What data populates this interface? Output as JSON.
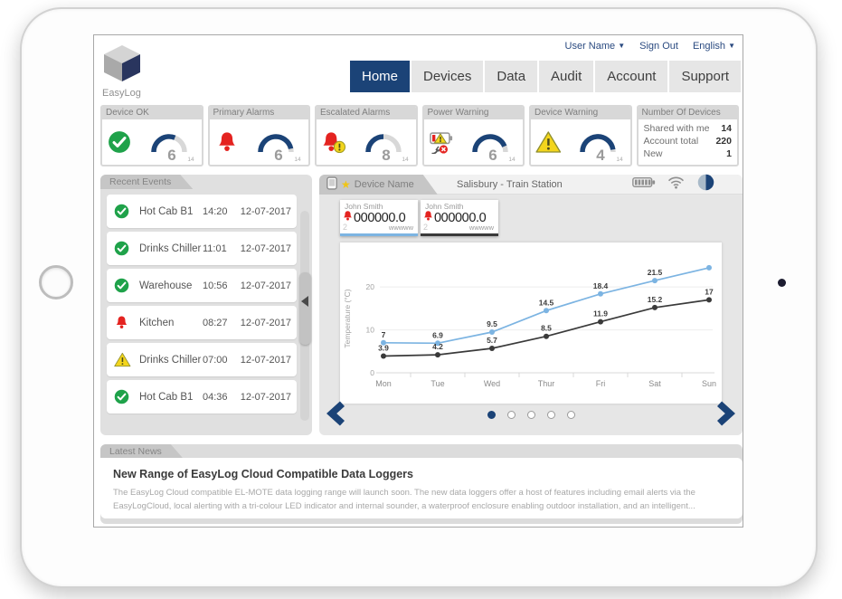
{
  "user_bar": {
    "user_name": "User Name",
    "sign_out": "Sign Out",
    "language": "English"
  },
  "brand": {
    "name": "EasyLog",
    "logo_icon": "cube-icon"
  },
  "nav": {
    "tabs": [
      {
        "label": "Home",
        "active": true
      },
      {
        "label": "Devices",
        "active": false
      },
      {
        "label": "Data",
        "active": false
      },
      {
        "label": "Audit",
        "active": false
      },
      {
        "label": "Account",
        "active": false
      },
      {
        "label": "Support",
        "active": false
      }
    ]
  },
  "status_cards": [
    {
      "label": "Device OK",
      "icon": "check-circle",
      "value": "6",
      "max": "14",
      "gauge_fill": 0.62
    },
    {
      "label": "Primary Alarms",
      "icon": "bell",
      "value": "6",
      "max": "14",
      "gauge_fill": 0.93
    },
    {
      "label": "Escalated Alarms",
      "icon": "bell-alert",
      "value": "8",
      "max": "14",
      "gauge_fill": 0.5
    },
    {
      "label": "Power Warning",
      "icon": "power-warning",
      "value": "6",
      "max": "14",
      "gauge_fill": 0.88
    },
    {
      "label": "Device Warning",
      "icon": "warning-triangle",
      "value": "4",
      "max": "14",
      "gauge_fill": 0.95
    },
    {
      "label": "Number Of Devices",
      "icon": null,
      "rows": [
        {
          "label": "Shared with me",
          "value": "14"
        },
        {
          "label": "Account total",
          "value": "220"
        },
        {
          "label": "New",
          "value": "1"
        }
      ]
    }
  ],
  "recent_events": {
    "title": "Recent Events",
    "events": [
      {
        "icon": "check-circle",
        "name": "Hot Cab B1",
        "time": "14:20",
        "date": "12-07-2017"
      },
      {
        "icon": "check-circle",
        "name": "Drinks Chiller",
        "time": "11:01",
        "date": "12-07-2017"
      },
      {
        "icon": "check-circle",
        "name": "Warehouse",
        "time": "10:56",
        "date": "12-07-2017"
      },
      {
        "icon": "bell",
        "name": "Kitchen",
        "time": "08:27",
        "date": "12-07-2017"
      },
      {
        "icon": "warning-triangle",
        "name": "Drinks Chiller",
        "time": "07:00",
        "date": "12-07-2017"
      },
      {
        "icon": "check-circle",
        "name": "Hot Cab B1",
        "time": "04:36",
        "date": "12-07-2017"
      }
    ]
  },
  "device_panel": {
    "tab_label": "Device Name",
    "tab_icons": [
      "device-icon",
      "star-icon"
    ],
    "location": "Salisbury - Train Station",
    "header_icons": [
      "battery-icon",
      "wifi-icon",
      "half-circle-icon"
    ],
    "readings": [
      {
        "owner": "John Smith",
        "alarm_icon": "bell",
        "value": "000000.0",
        "index": "2",
        "unit": "wwwww",
        "accent": "#7cb4e2"
      },
      {
        "owner": "John Smith",
        "alarm_icon": "bell",
        "value": "000000.0",
        "index": "2",
        "unit": "wwwww",
        "accent": "#3a3a3a"
      }
    ],
    "pager": {
      "dots": 5,
      "active": 0
    }
  },
  "chart_data": {
    "type": "line",
    "categories": [
      "Mon",
      "Tue",
      "Wed",
      "Thur",
      "Fri",
      "Sat",
      "Sun"
    ],
    "series": [
      {
        "name": "series-black",
        "color": "#3a3a3a",
        "values": [
          3.9,
          4.2,
          5.7,
          8.5,
          11.9,
          15.2,
          17
        ],
        "data_labels": [
          "3.9",
          "4.2",
          "5.7",
          "8.5",
          "11.9",
          "15.2",
          "17"
        ]
      },
      {
        "name": "series-blue",
        "color": "#7cb4e2",
        "values": [
          7,
          6.9,
          9.5,
          14.5,
          18.4,
          21.5,
          24.5
        ],
        "data_labels": [
          "7",
          "6.9",
          "9.5",
          "14.5",
          "18.4",
          "21.5",
          ""
        ]
      }
    ],
    "ylabel": "Temperature (°C)",
    "yticks": [
      0,
      10,
      20
    ],
    "ylim": [
      0,
      27
    ],
    "grid": true,
    "legend": "none"
  },
  "news": {
    "tab_label": "Latest News",
    "title": "New Range of EasyLog Cloud Compatible Data Loggers",
    "body": "The EasyLog Cloud compatible EL-MOTE data logging range will launch soon. The new data loggers offer a host of features including email alerts via the EasyLogCloud, local alerting with a tri-colour LED indicator and internal sounder, a waterproof enclosure enabling outdoor installation, and an intelligent..."
  },
  "colors": {
    "navy": "#1b4377",
    "panel_gray": "#e0e0e0",
    "tab_gray": "#c6c6c6",
    "ok_green": "#1fa24a",
    "alarm_red": "#e42320",
    "warning_yellow": "#f3d51c",
    "line_blue": "#7cb4e2",
    "line_black": "#3a3a3a"
  }
}
